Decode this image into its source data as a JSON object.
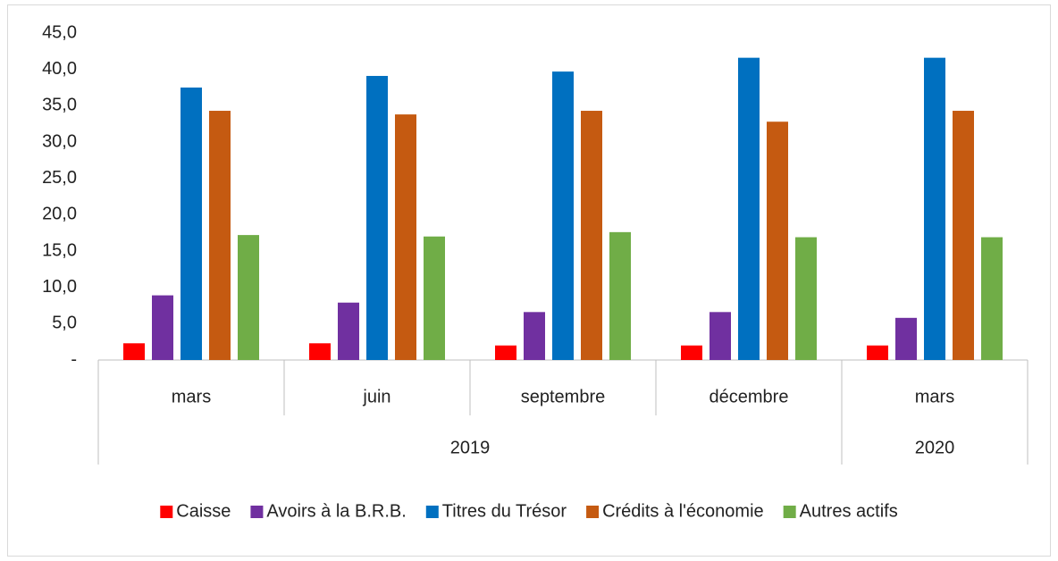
{
  "chart_data": {
    "type": "bar",
    "year_groups": [
      {
        "label": "2019",
        "months": [
          "mars",
          "juin",
          "septembre",
          "décembre"
        ]
      },
      {
        "label": "2020",
        "months": [
          "mars"
        ]
      }
    ],
    "series": [
      {
        "name": "Caisse",
        "color": "#ff0000",
        "values": [
          2.3,
          2.3,
          2.0,
          2.0,
          2.0
        ]
      },
      {
        "name": "Avoirs à la B.R.B.",
        "color": "#7030a0",
        "values": [
          8.9,
          7.9,
          6.6,
          6.6,
          5.8
        ]
      },
      {
        "name": "Titres du Trésor",
        "color": "#0070c0",
        "values": [
          37.5,
          39.1,
          39.7,
          41.6,
          41.6
        ]
      },
      {
        "name": "Crédits à l'économie",
        "color": "#c55a11",
        "values": [
          34.3,
          33.8,
          34.3,
          32.8,
          34.3
        ]
      },
      {
        "name": "Autres actifs",
        "color": "#70ad47",
        "values": [
          17.2,
          17.0,
          17.6,
          16.9,
          16.9
        ]
      }
    ],
    "ylim": [
      0,
      45
    ],
    "yticks": [
      {
        "value": 0,
        "label": "-"
      },
      {
        "value": 5,
        "label": "5,0"
      },
      {
        "value": 10,
        "label": "10,0"
      },
      {
        "value": 15,
        "label": "15,0"
      },
      {
        "value": 20,
        "label": "20,0"
      },
      {
        "value": 25,
        "label": "25,0"
      },
      {
        "value": 30,
        "label": "30,0"
      },
      {
        "value": 35,
        "label": "35,0"
      },
      {
        "value": 40,
        "label": "40,0"
      },
      {
        "value": 45,
        "label": "45,0"
      }
    ],
    "legend": "bottom"
  }
}
